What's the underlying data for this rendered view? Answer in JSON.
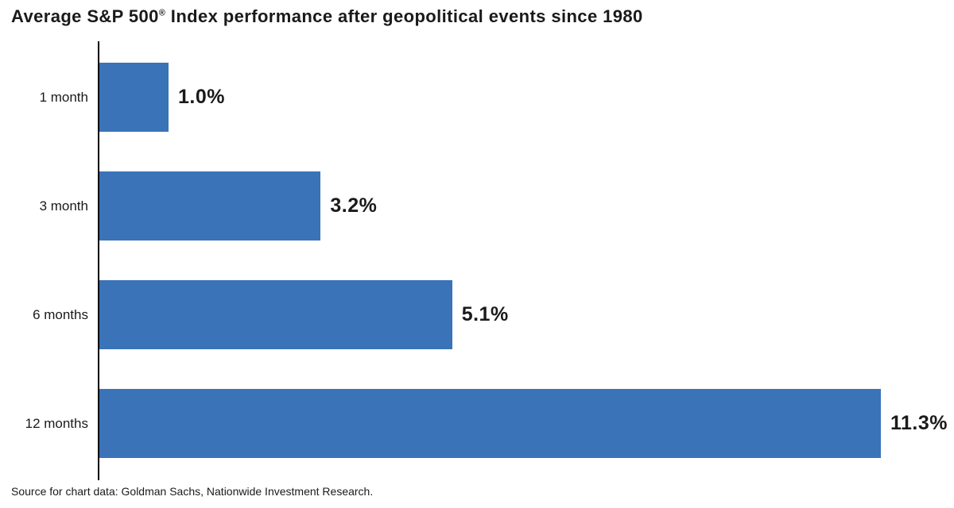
{
  "title": {
    "pre": "Average S&P 500",
    "reg": "®",
    "post": " Index performance after geopolitical events since 1980"
  },
  "source": "Source for chart data: Goldman Sachs, Nationwide Investment Research.",
  "chart_data": {
    "type": "bar",
    "orientation": "horizontal",
    "title": "Average S&P 500® Index performance after geopolitical events since 1980",
    "categories": [
      "1 month",
      "3 month",
      "6 months",
      "12 months"
    ],
    "values": [
      1.0,
      3.2,
      5.1,
      11.3
    ],
    "value_labels": [
      "1.0%",
      "3.2%",
      "5.1%",
      "11.3%"
    ],
    "xlabel": "",
    "ylabel": "",
    "xlim": [
      0,
      11.3
    ],
    "grid": false,
    "legend": null,
    "bar_color": "#3A73B8",
    "axis_color": "#000000",
    "text_color": "#1a1a1a",
    "background_color": "#ffffff",
    "source": "Source for chart data: Goldman Sachs, Nationwide Investment Research."
  }
}
